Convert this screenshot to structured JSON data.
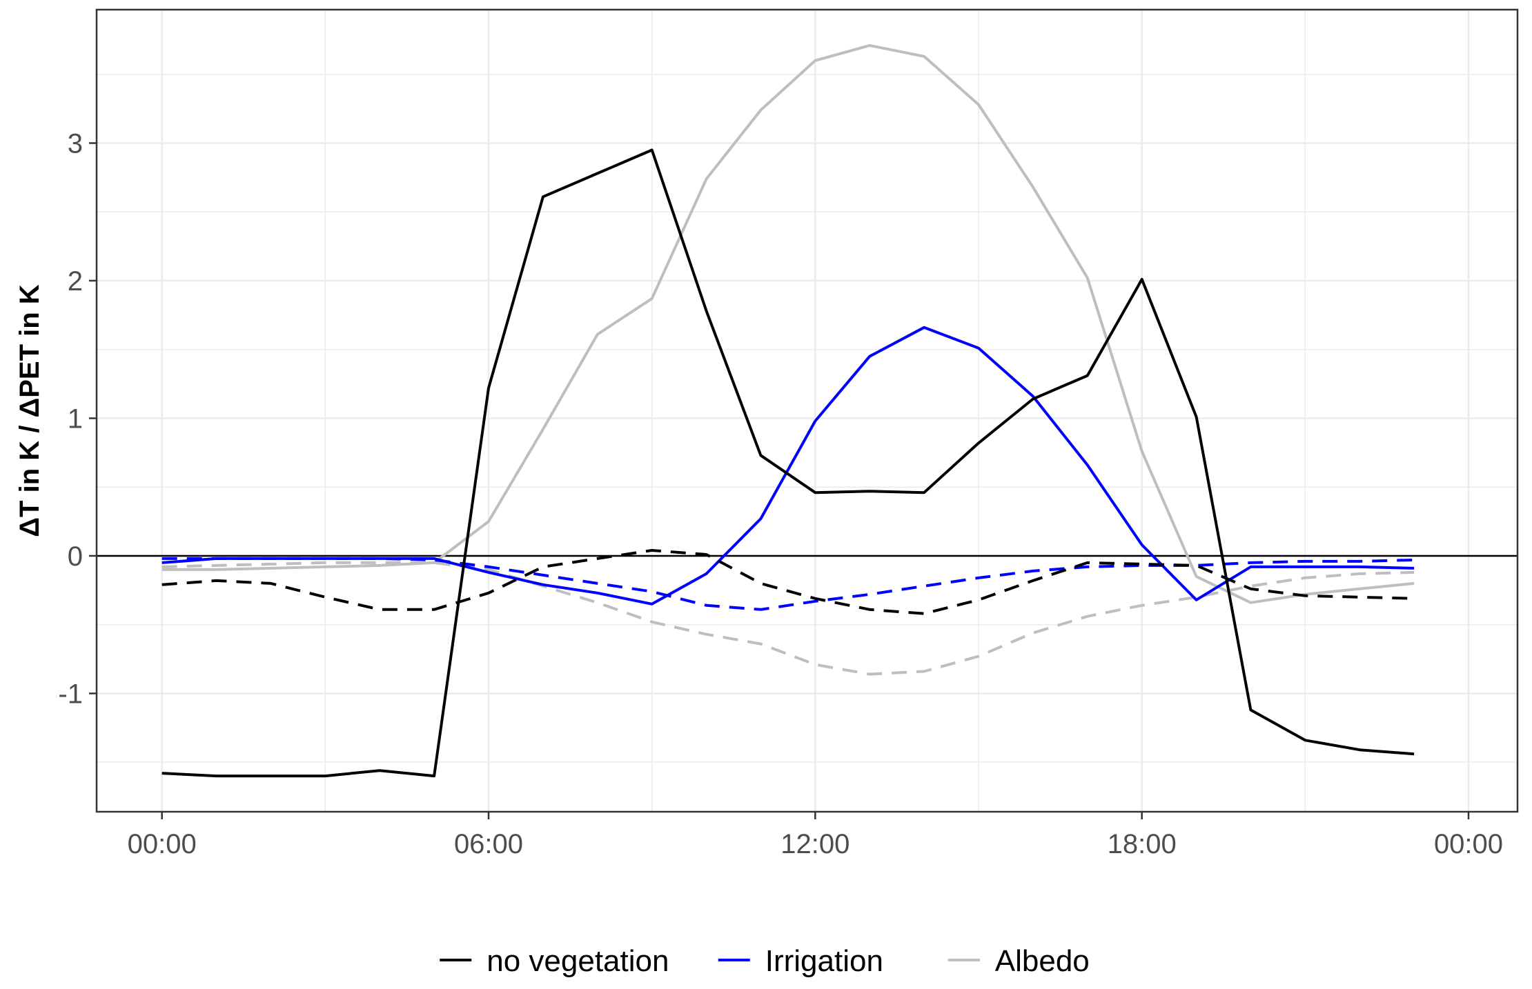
{
  "chart_data": {
    "type": "line",
    "title": "",
    "xlabel": "",
    "ylabel": "ΔT in K / ΔPET  in K",
    "x_ticks": [
      "00:00",
      "06:00",
      "12:00",
      "18:00",
      "00:00"
    ],
    "y_ticks": [
      "-1",
      "0",
      "1",
      "2",
      "3"
    ],
    "xlim_hours": [
      -1.2,
      24.9
    ],
    "ylim": [
      -1.86,
      3.97
    ],
    "grid": true,
    "reference_line_y": 0,
    "legend_position": "bottom",
    "line_type_note": "solid = ΔT, dashed = ΔPET",
    "series": [
      {
        "name": "no vegetation",
        "color": "#000000",
        "linetype": "solid",
        "show_in_legend": true,
        "x": [
          0,
          1,
          2,
          3,
          4,
          5,
          6,
          7,
          8,
          9,
          10,
          11,
          12,
          13,
          14,
          15,
          16,
          17,
          18,
          19,
          20,
          21,
          22,
          23
        ],
        "values": [
          -1.58,
          -1.6,
          -1.6,
          -1.6,
          -1.56,
          -1.6,
          1.22,
          2.61,
          2.78,
          2.95,
          1.78,
          0.73,
          0.46,
          0.47,
          0.46,
          0.82,
          1.14,
          1.31,
          2.01,
          1.01,
          -1.12,
          -1.34,
          -1.41,
          -1.44
        ]
      },
      {
        "name": "no vegetation",
        "color": "#000000",
        "linetype": "dashed",
        "show_in_legend": false,
        "x": [
          0,
          1,
          2,
          3,
          4,
          5,
          6,
          7,
          8,
          9,
          10,
          11,
          12,
          13,
          14,
          15,
          16,
          17,
          18,
          19,
          20,
          21,
          22,
          23
        ],
        "values": [
          -0.21,
          -0.18,
          -0.2,
          -0.3,
          -0.39,
          -0.39,
          -0.27,
          -0.08,
          -0.02,
          0.04,
          0.01,
          -0.2,
          -0.31,
          -0.39,
          -0.42,
          -0.32,
          -0.18,
          -0.05,
          -0.06,
          -0.07,
          -0.24,
          -0.29,
          -0.3,
          -0.31
        ]
      },
      {
        "name": "Irrigation",
        "color": "#0000ff",
        "linetype": "solid",
        "show_in_legend": true,
        "x": [
          0,
          1,
          2,
          3,
          4,
          5,
          6,
          7,
          8,
          9,
          10,
          11,
          12,
          13,
          14,
          15,
          16,
          17,
          18,
          19,
          20,
          21,
          22,
          23
        ],
        "values": [
          -0.05,
          -0.02,
          -0.02,
          -0.02,
          -0.02,
          -0.02,
          -0.12,
          -0.21,
          -0.27,
          -0.35,
          -0.13,
          0.27,
          0.98,
          1.45,
          1.66,
          1.51,
          1.16,
          0.66,
          0.08,
          -0.32,
          -0.08,
          -0.08,
          -0.08,
          -0.09
        ]
      },
      {
        "name": "Irrigation",
        "color": "#0000ff",
        "linetype": "dashed",
        "show_in_legend": false,
        "x": [
          0,
          1,
          2,
          3,
          4,
          5,
          6,
          7,
          8,
          9,
          10,
          11,
          12,
          13,
          14,
          15,
          16,
          17,
          18,
          19,
          20,
          21,
          22,
          23
        ],
        "values": [
          -0.02,
          -0.02,
          -0.02,
          -0.02,
          -0.02,
          -0.03,
          -0.08,
          -0.14,
          -0.2,
          -0.26,
          -0.36,
          -0.39,
          -0.33,
          -0.28,
          -0.22,
          -0.16,
          -0.11,
          -0.08,
          -0.07,
          -0.07,
          -0.05,
          -0.04,
          -0.04,
          -0.03
        ]
      },
      {
        "name": "Albedo",
        "color": "#bebebe",
        "linetype": "solid",
        "show_in_legend": true,
        "x": [
          0,
          1,
          2,
          3,
          4,
          5,
          6,
          7,
          8,
          9,
          10,
          11,
          12,
          13,
          14,
          15,
          16,
          17,
          18,
          19,
          20,
          21,
          22,
          23
        ],
        "values": [
          -0.1,
          -0.1,
          -0.09,
          -0.08,
          -0.07,
          -0.05,
          0.25,
          0.92,
          1.61,
          1.87,
          2.74,
          3.24,
          3.6,
          3.71,
          3.63,
          3.28,
          2.68,
          2.02,
          0.76,
          -0.15,
          -0.34,
          -0.28,
          -0.24,
          -0.2
        ]
      },
      {
        "name": "Albedo",
        "color": "#bebebe",
        "linetype": "dashed",
        "show_in_legend": false,
        "x": [
          0,
          1,
          2,
          3,
          4,
          5,
          6,
          7,
          8,
          9,
          10,
          11,
          12,
          13,
          14,
          15,
          16,
          17,
          18,
          19,
          20,
          21,
          22,
          23
        ],
        "values": [
          -0.08,
          -0.07,
          -0.06,
          -0.05,
          -0.05,
          -0.05,
          -0.1,
          -0.22,
          -0.34,
          -0.48,
          -0.57,
          -0.64,
          -0.79,
          -0.86,
          -0.84,
          -0.73,
          -0.56,
          -0.44,
          -0.36,
          -0.3,
          -0.22,
          -0.16,
          -0.13,
          -0.12
        ]
      }
    ]
  },
  "colors": {
    "grid": "#ebebeb",
    "panel_border": "#333333",
    "zero_line": "#000000",
    "tick_text": "#4d4d4d"
  }
}
